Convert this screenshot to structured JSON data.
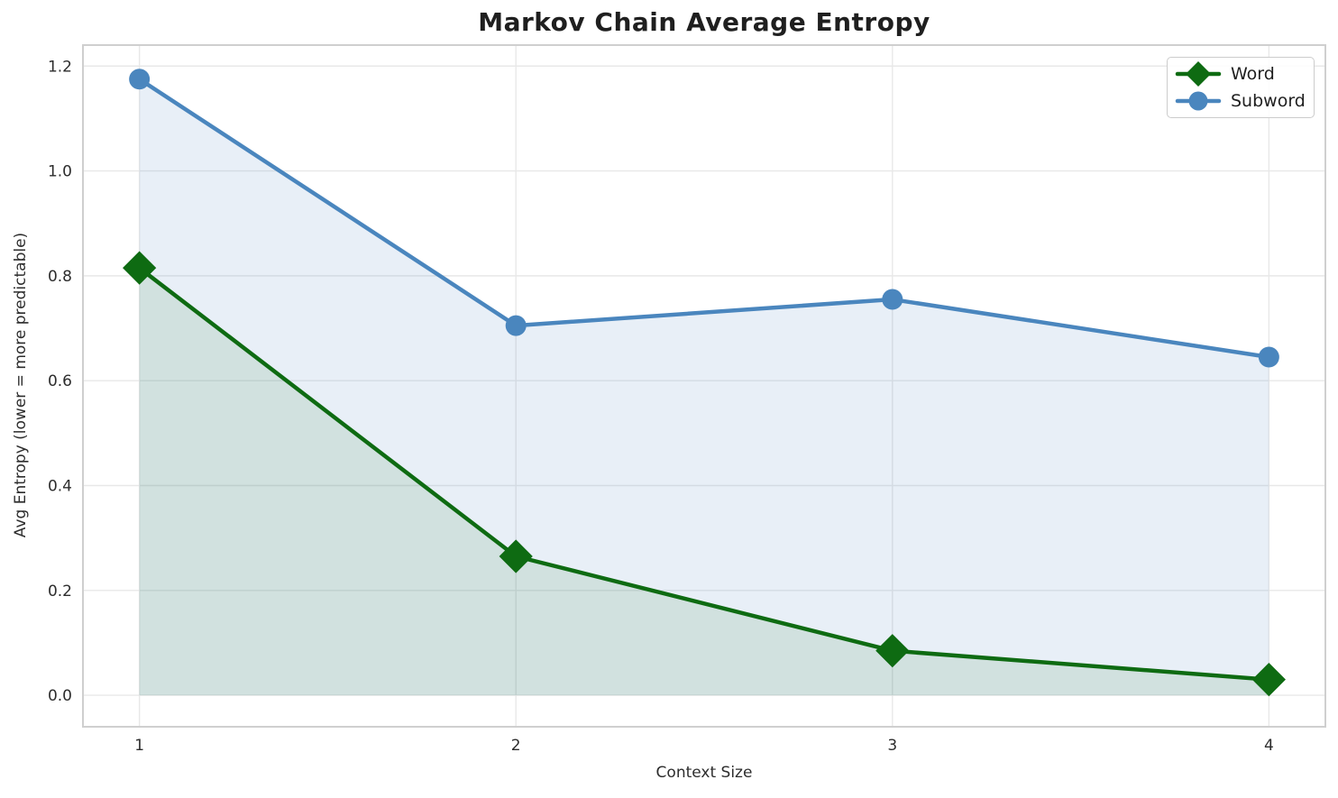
{
  "chart_data": {
    "type": "line",
    "title": "Markov Chain Average Entropy",
    "xlabel": "Context Size",
    "ylabel": "Avg Entropy (lower = more predictable)",
    "x": [
      1,
      2,
      3,
      4
    ],
    "series": [
      {
        "name": "Word",
        "marker": "diamond",
        "color": "#0e6b12",
        "fill_color": "rgba(14, 107, 18, 0.10)",
        "values": [
          0.815,
          0.265,
          0.085,
          0.03
        ]
      },
      {
        "name": "Subword",
        "marker": "circle",
        "color": "#4a86be",
        "fill_color": "rgba(74, 134, 190, 0.13)",
        "values": [
          1.175,
          0.705,
          0.755,
          0.645
        ]
      }
    ],
    "xticks": [
      1,
      2,
      3,
      4
    ],
    "yticks": [
      0.0,
      0.2,
      0.4,
      0.6,
      0.8,
      1.0,
      1.2
    ],
    "xlim": [
      0.85,
      4.15
    ],
    "ylim": [
      -0.06,
      1.24
    ],
    "grid": true,
    "legend_position": "upper right",
    "fill_to_zero": true
  },
  "style_colors": {
    "grid": "#e8e8e8",
    "spine": "#cfcfcf",
    "tick_text": "#2d2d2d"
  }
}
